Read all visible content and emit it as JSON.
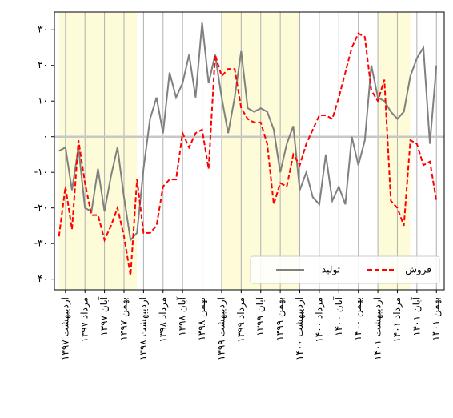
{
  "chart_data": {
    "type": "line",
    "categories": [
      null,
      "اردیبهشت ۱۳۹۷",
      null,
      null,
      "مرداد ۱۳۹۷",
      null,
      null,
      "آبان ۱۳۹۷",
      null,
      null,
      "بهمن ۱۳۹۷",
      null,
      null,
      "اردیبهشت ۱۳۹۸",
      null,
      null,
      "مرداد ۱۳۹۸",
      null,
      null,
      "آبان ۱۳۹۸",
      null,
      null,
      "بهمن ۱۳۹۸",
      null,
      null,
      "اردیبهشت ۱۳۹۹",
      null,
      null,
      "مرداد ۱۳۹۹",
      null,
      null,
      "آبان ۱۳۹۹",
      null,
      null,
      "بهمن ۱۳۹۹",
      null,
      null,
      "اردیبهشت ۱۴۰۰",
      null,
      null,
      "مرداد ۱۴۰۰",
      null,
      null,
      "آبان ۱۴۰۰",
      null,
      null,
      "بهمن ۱۴۰۰",
      null,
      null,
      "اردیبهشت ۱۴۰۱",
      null,
      null,
      "مرداد ۱۴۰۱",
      null,
      null,
      "آبان ۱۴۰۱",
      null,
      null,
      "بهمن ۱۴۰۱"
    ],
    "series": [
      {
        "name": "تولید",
        "color": "#808080",
        "dash": false,
        "values": [
          -4,
          -3,
          -15,
          -3,
          -20,
          -21,
          -9,
          -21,
          -11,
          -3,
          -17,
          -29,
          -27,
          -9,
          5,
          11,
          1,
          18,
          11,
          15,
          23,
          11,
          32,
          15,
          23,
          11,
          1,
          11,
          24,
          8,
          7,
          8,
          7,
          2,
          -10,
          -2,
          3,
          -15,
          -10,
          -17,
          -19,
          -5,
          -18,
          -14,
          -19,
          0,
          -8,
          -1,
          20,
          11,
          10,
          7,
          5,
          7,
          17,
          22,
          25,
          -2,
          20
        ]
      },
      {
        "name": "فروش",
        "color": "#ff0000",
        "dash": true,
        "values": [
          -28,
          -14,
          -26,
          -1,
          -13,
          -22,
          -22,
          -29,
          -25,
          -20,
          -28,
          -39,
          -12,
          -27,
          -27,
          -25,
          -14,
          -12,
          -12,
          1,
          -3,
          1,
          2,
          -9,
          23,
          17,
          19,
          19,
          8,
          5,
          4,
          4,
          -2,
          -19,
          -13,
          -14,
          -5,
          -8,
          -2,
          2,
          6,
          6,
          5,
          11,
          18,
          25,
          29,
          28,
          13,
          10,
          16,
          -18,
          -20,
          -25,
          -1,
          -2,
          -8,
          -7,
          -18
        ]
      }
    ],
    "xlim": [
      -0.7,
      59.2
    ],
    "ylim": [
      -43,
      35
    ],
    "yticks": [
      {
        "value": 30,
        "label": "۳۰"
      },
      {
        "value": 20,
        "label": "۲۰"
      },
      {
        "value": 10,
        "label": "۱۰"
      },
      {
        "value": 0,
        "label": "۰"
      },
      {
        "value": -10,
        "label": "-۱۰"
      },
      {
        "value": -20,
        "label": "-۲۰"
      },
      {
        "value": -30,
        "label": "-۳۰"
      },
      {
        "value": -40,
        "label": "-۴۰"
      }
    ],
    "shaded_ranges": [
      [
        0,
        12
      ],
      [
        25,
        37
      ],
      [
        49,
        54
      ]
    ],
    "shade_color": "#fdfbd8",
    "zero_line": true,
    "grid": true,
    "legend": "lower right"
  }
}
